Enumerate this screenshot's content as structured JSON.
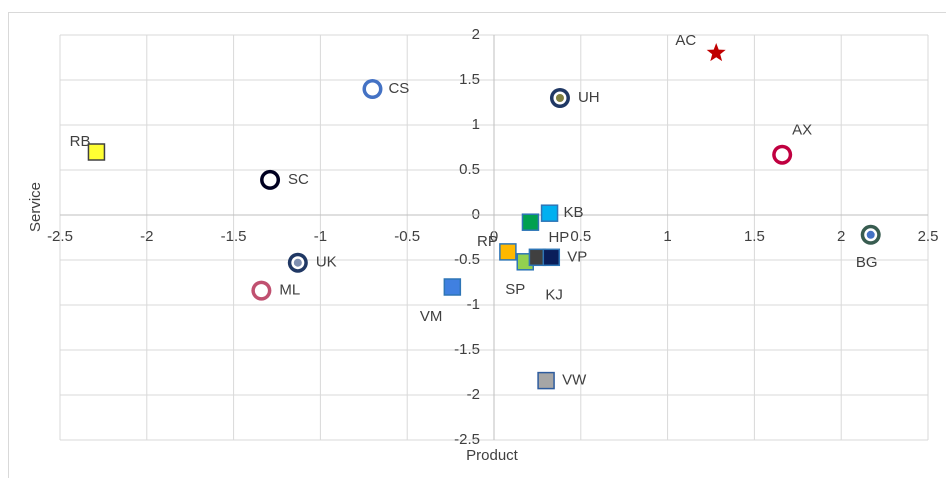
{
  "chart_data": {
    "type": "scatter",
    "x_label": "Product",
    "y_label": "Service",
    "labels": [
      "AC",
      "CS",
      "UH",
      "RB",
      "AX",
      "SC",
      "KB",
      "BG",
      "HP",
      "RP",
      "SP",
      "KJ",
      "VP",
      "UK",
      "ML",
      "VM",
      "VW"
    ],
    "x": [
      1.28,
      -0.7,
      0.38,
      -2.29,
      1.66,
      -1.29,
      0.32,
      2.17,
      0.21,
      0.08,
      0.18,
      0.25,
      0.33,
      -1.13,
      -1.34,
      -0.24,
      0.3
    ],
    "values": [
      1.8,
      1.4,
      1.3,
      0.7,
      0.67,
      0.39,
      0.02,
      -0.22,
      -0.08,
      -0.41,
      -0.52,
      -0.47,
      -0.47,
      -0.53,
      -0.84,
      -0.8,
      -1.84
    ],
    "markers": [
      "star",
      "ring",
      "ring",
      "square",
      "ring",
      "ring",
      "square",
      "ring",
      "square",
      "square",
      "square",
      "square",
      "square",
      "ring",
      "ring",
      "square",
      "square"
    ],
    "colors": [
      "#c00000",
      "#ffffff",
      "#7f7f3f",
      "#ffff33",
      "#ffffff",
      "#ffffff",
      "#00b0f0",
      "#4472c4",
      "#00a050",
      "#ffb800",
      "#92d050",
      "#404040",
      "#0a1e5a",
      "#7f8fb0",
      "#ffffff",
      "#4080e0",
      "#a6a6a6"
    ],
    "edge_colors": [
      "#c00000",
      "#4472c4",
      "#203864",
      "#404040",
      "#c00040",
      "#000020",
      "#2e75b6",
      "#385c50",
      "#2e75b6",
      "#2e75b6",
      "#2e75b6",
      "#2e75b6",
      "#2e75b6",
      "#203864",
      "#c05070",
      "#2e75b6",
      "#2e5c9e"
    ],
    "xlim": [
      -2.5,
      2.5
    ],
    "xticks": [
      -2.5,
      -2,
      -1.5,
      -1,
      -0.5,
      0,
      0.5,
      1,
      1.5,
      2,
      2.5
    ],
    "ylim": [
      -2.5,
      2
    ],
    "yticks": [
      -2.5,
      -2,
      -1.5,
      -1,
      -0.5,
      0,
      0.5,
      1,
      1.5,
      2
    ],
    "grid": true
  }
}
